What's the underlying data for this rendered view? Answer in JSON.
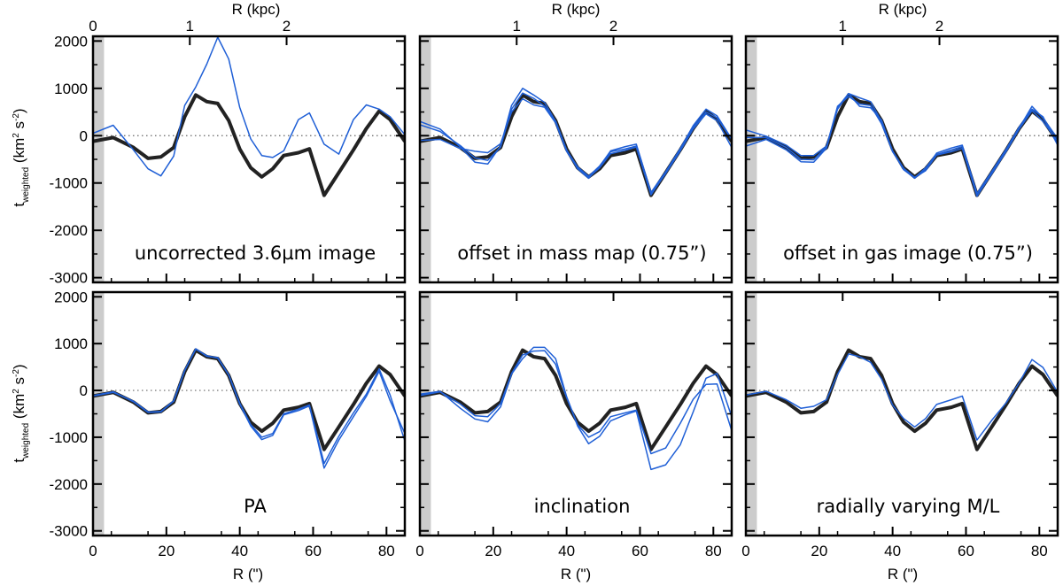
{
  "chart_data": {
    "type": "line",
    "x_label": "R (\")",
    "top_axis_label": "R (kpc)",
    "y_label_main": "t",
    "y_label_sub": "weighted",
    "y_label_units": "(km",
    "y_label_sup1": "2",
    "y_label_units2": " s",
    "y_label_sup2": "-2",
    "y_label_close": ")",
    "xlim": [
      0,
      85
    ],
    "ylim": [
      -3100,
      2100
    ],
    "y_ticks": [
      2000,
      1000,
      0,
      -1000,
      -2000,
      -3000
    ],
    "y_tick_labels": [
      "2000",
      "1000",
      "0",
      "-1000",
      "-2000",
      "-3000"
    ],
    "x_ticks": [
      0,
      20,
      40,
      60,
      80
    ],
    "x_tick_labels": [
      "0",
      "20",
      "40",
      "60",
      "80"
    ],
    "top_ticks_kpc": [
      0,
      1,
      2
    ],
    "top_tick_labels": [
      "0",
      "1",
      "2"
    ],
    "kpc_per_arcsec": 0.0379,
    "shaded_band": [
      0,
      3
    ],
    "zero_line": true,
    "reference_color": "#222222",
    "variant_color": "#1f5fd6",
    "shade_color": "#cccccc",
    "x": [
      0,
      5.5,
      11,
      15,
      18.5,
      22,
      25,
      28,
      31,
      34,
      37,
      40,
      43,
      46,
      49,
      52,
      56,
      59,
      63,
      67,
      71,
      74.5,
      78,
      81,
      85
    ],
    "reference": [
      -120,
      -40,
      -250,
      -480,
      -450,
      -250,
      400,
      860,
      720,
      680,
      320,
      -280,
      -680,
      -870,
      -700,
      -420,
      -360,
      -280,
      -1260,
      -780,
      -300,
      150,
      520,
      340,
      -120
    ],
    "panels": [
      {
        "caption": "uncorrected 3.6µm image",
        "variants": [
          [
            50,
            220,
            -300,
            -700,
            -850,
            -430,
            640,
            1030,
            1510,
            2080,
            1620,
            600,
            -70,
            -420,
            -460,
            -320,
            340,
            480,
            -180,
            -390,
            340,
            650,
            560,
            400,
            20
          ]
        ]
      },
      {
        "caption": "offset in mass map (0.75”)",
        "variants": [
          [
            300,
            140,
            -240,
            -560,
            -600,
            -220,
            640,
            1000,
            860,
            700,
            300,
            -300,
            -700,
            -900,
            -650,
            -320,
            -230,
            -180,
            -1200,
            -760,
            -270,
            210,
            560,
            420,
            -70
          ],
          [
            230,
            90,
            -210,
            -470,
            -520,
            -240,
            560,
            900,
            790,
            620,
            310,
            -310,
            -660,
            -860,
            -640,
            -340,
            -280,
            -220,
            -1250,
            -780,
            -280,
            170,
            500,
            380,
            -80
          ],
          [
            -100,
            -80,
            -270,
            -330,
            -360,
            -170,
            500,
            780,
            650,
            600,
            270,
            -330,
            -690,
            -880,
            -680,
            -380,
            -310,
            -240,
            -1240,
            -800,
            -320,
            140,
            460,
            320,
            -250
          ]
        ]
      },
      {
        "caption": "offset in gas image (0.75”)",
        "variants": [
          [
            120,
            -10,
            -200,
            -420,
            -420,
            -220,
            560,
            890,
            800,
            720,
            300,
            -320,
            -720,
            -890,
            -680,
            -400,
            -300,
            -230,
            -1280,
            -790,
            -300,
            160,
            620,
            370,
            -60
          ],
          [
            -40,
            -40,
            -250,
            -500,
            -510,
            -230,
            620,
            830,
            670,
            640,
            250,
            -330,
            -690,
            -880,
            -740,
            -410,
            -340,
            -270,
            -1270,
            -810,
            -330,
            140,
            530,
            300,
            -120
          ],
          [
            -220,
            -80,
            -300,
            -550,
            -560,
            -260,
            600,
            890,
            620,
            590,
            330,
            -340,
            -700,
            -900,
            -700,
            -370,
            -260,
            -200,
            -1220,
            -760,
            -280,
            180,
            560,
            400,
            -200
          ]
        ]
      },
      {
        "caption": "PA",
        "variants": [
          [
            -110,
            -30,
            -240,
            -470,
            -460,
            -230,
            420,
            890,
            730,
            700,
            330,
            -290,
            -760,
            -1050,
            -960,
            -520,
            -430,
            -330,
            -1660,
            -1060,
            -560,
            -130,
            410,
            -220,
            -920
          ],
          [
            -120,
            -40,
            -230,
            -460,
            -450,
            -220,
            430,
            880,
            740,
            690,
            330,
            -270,
            -730,
            -1000,
            -920,
            -500,
            -400,
            -310,
            -1560,
            -980,
            -480,
            -80,
            460,
            -100,
            -1080
          ]
        ]
      },
      {
        "caption": "inclination",
        "variants": [
          [
            -80,
            -20,
            -380,
            -610,
            -670,
            -350,
            350,
            680,
            920,
            920,
            680,
            -130,
            -760,
            -1140,
            -980,
            -650,
            -520,
            -440,
            -1690,
            -1590,
            -1160,
            -460,
            260,
            360,
            -560
          ],
          [
            -110,
            -30,
            -290,
            -540,
            -560,
            -280,
            360,
            760,
            840,
            850,
            560,
            -150,
            -730,
            -1000,
            -880,
            -560,
            -480,
            -420,
            -1350,
            -1230,
            -700,
            -190,
            130,
            140,
            -860
          ]
        ]
      },
      {
        "caption": "radially varying M/L",
        "variants": [
          [
            -100,
            -20,
            -200,
            -380,
            -340,
            -200,
            340,
            780,
            720,
            600,
            240,
            -310,
            -600,
            -780,
            -600,
            -300,
            -200,
            -120,
            -1060,
            -640,
            -260,
            160,
            660,
            490,
            -40
          ]
        ]
      }
    ]
  }
}
